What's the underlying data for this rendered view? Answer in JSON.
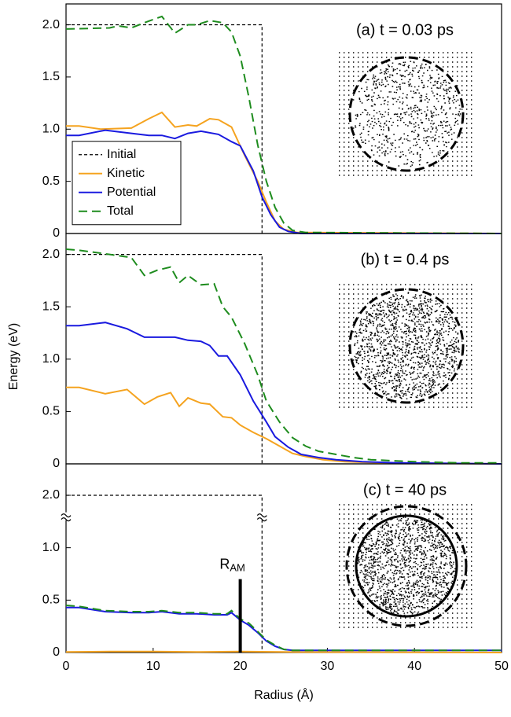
{
  "chart_data": [
    {
      "type": "line",
      "title": "(a)  t = 0.03 ps",
      "xlim": [
        0,
        50
      ],
      "ylim": [
        0,
        2.2
      ],
      "yticks": [
        0,
        0.5,
        {
          "value": 1,
          "label": "1.0"
        },
        1.5,
        {
          "value": 2,
          "label": "2.0"
        }
      ],
      "legend": "center left",
      "series": [
        {
          "name": "Initial",
          "color": "#000000",
          "linestyle": "short-dash",
          "x": [
            0,
            22.5,
            22.5
          ],
          "values": [
            2,
            2,
            0
          ]
        },
        {
          "name": "Kinetic",
          "color": "#f5a31f",
          "linestyle": "solid",
          "x": [
            0,
            1.5,
            4,
            7.5,
            9.5,
            11,
            12.5,
            14,
            15,
            16.5,
            17.5,
            19,
            20.5,
            22,
            23,
            24,
            25,
            26.5,
            50
          ],
          "values": [
            1.03,
            1.03,
            1.0,
            1.01,
            1.1,
            1.16,
            1.02,
            1.04,
            1.03,
            1.1,
            1.09,
            1.02,
            0.75,
            0.5,
            0.3,
            0.12,
            0.04,
            0.01,
            0
          ]
        },
        {
          "name": "Potential",
          "color": "#1a1adf",
          "linestyle": "solid",
          "x": [
            0,
            1.5,
            4.5,
            7.5,
            9.5,
            11,
            12.5,
            14,
            15.5,
            17.5,
            19,
            20,
            21.5,
            22.5,
            23.5,
            24.5,
            25.5,
            27,
            50
          ],
          "values": [
            0.94,
            0.94,
            0.99,
            0.96,
            0.94,
            0.94,
            0.91,
            0.96,
            0.98,
            0.95,
            0.88,
            0.84,
            0.6,
            0.35,
            0.18,
            0.06,
            0.02,
            0,
            0
          ]
        },
        {
          "name": "Total",
          "color": "#1e8c1e",
          "linestyle": "long-dash",
          "x": [
            0,
            5,
            6,
            7.5,
            9,
            11,
            12.5,
            14,
            15,
            16.5,
            18,
            19,
            20,
            21,
            22,
            23,
            24,
            25,
            26,
            27.5,
            50
          ],
          "values": [
            1.96,
            1.97,
            1.99,
            1.97,
            2.02,
            2.08,
            1.92,
            2.0,
            2.0,
            2.04,
            2.02,
            1.93,
            1.7,
            1.3,
            0.85,
            0.5,
            0.25,
            0.1,
            0.03,
            0.01,
            0
          ]
        }
      ]
    },
    {
      "type": "line",
      "title": "(b)  t = 0.4 ps",
      "ylabel": "Energy (eV)",
      "xlim": [
        0,
        50
      ],
      "ylim": [
        0,
        2.2
      ],
      "yticks": [
        0,
        0.5,
        {
          "value": 1,
          "label": "1.0"
        },
        1.5,
        {
          "value": 2,
          "label": "2.0"
        }
      ],
      "series": [
        {
          "color": "#000000",
          "linestyle": "short-dash",
          "x": [
            0,
            22.5,
            22.5
          ],
          "values": [
            2,
            2,
            0
          ]
        },
        {
          "color": "#f5a31f",
          "linestyle": "solid",
          "x": [
            0,
            1.5,
            4.5,
            7,
            9,
            10.5,
            12,
            13,
            14,
            15.5,
            16.5,
            18,
            19,
            20,
            21.5,
            23,
            24.5,
            26,
            27.5,
            29.5,
            32,
            36,
            50
          ],
          "values": [
            0.73,
            0.73,
            0.67,
            0.71,
            0.57,
            0.64,
            0.68,
            0.55,
            0.63,
            0.58,
            0.57,
            0.45,
            0.44,
            0.37,
            0.3,
            0.24,
            0.17,
            0.1,
            0.07,
            0.04,
            0.02,
            0.01,
            0
          ]
        },
        {
          "color": "#1a1adf",
          "linestyle": "solid",
          "x": [
            0,
            1.5,
            4.5,
            7,
            9,
            11,
            12.5,
            14,
            15.5,
            16.5,
            17.5,
            18.5,
            20,
            21.5,
            23,
            24,
            25.5,
            27,
            29,
            31,
            34,
            38,
            50
          ],
          "values": [
            1.32,
            1.32,
            1.35,
            1.29,
            1.21,
            1.21,
            1.21,
            1.18,
            1.17,
            1.13,
            1.03,
            1.03,
            0.85,
            0.6,
            0.4,
            0.26,
            0.16,
            0.09,
            0.06,
            0.04,
            0.02,
            0.01,
            0
          ]
        },
        {
          "color": "#1e8c1e",
          "linestyle": "long-dash",
          "x": [
            0,
            1.5,
            5,
            7.5,
            9,
            10.5,
            12,
            13,
            14,
            15.5,
            17,
            18,
            19,
            20.5,
            22,
            23,
            24.5,
            26,
            27.5,
            29,
            31,
            33,
            35,
            37.5,
            40,
            45,
            50
          ],
          "values": [
            2.05,
            2.04,
            2.0,
            1.97,
            1.8,
            1.85,
            1.88,
            1.73,
            1.8,
            1.71,
            1.72,
            1.5,
            1.4,
            1.15,
            0.85,
            0.6,
            0.4,
            0.25,
            0.17,
            0.12,
            0.09,
            0.06,
            0.04,
            0.03,
            0.02,
            0.01,
            0.01
          ]
        }
      ]
    },
    {
      "type": "line",
      "title": "(c)  t = 40 ps",
      "xlabel": "Radius (Å)",
      "xlim": [
        0,
        50
      ],
      "xticks": [
        0,
        10,
        20,
        30,
        40,
        50
      ],
      "ylim": [
        0,
        2.3
      ],
      "axis_break": [
        1.3,
        1.8
      ],
      "yticks": [
        0,
        0.5,
        {
          "value": 1,
          "label": "1.0"
        },
        {
          "value": 2,
          "label": "2.0"
        }
      ],
      "annotation": {
        "text": "R",
        "subscript": "AM",
        "x": 20,
        "y": 0.7
      },
      "series": [
        {
          "color": "#000000",
          "linestyle": "short-dash",
          "x": [
            0,
            22.5,
            22.5
          ],
          "values": [
            2,
            2,
            0
          ]
        },
        {
          "color": "#f5a31f",
          "linestyle": "solid",
          "x": [
            0,
            5,
            10,
            15,
            20,
            25,
            50
          ],
          "values": [
            0.005,
            0.01,
            0.01,
            0.005,
            0.01,
            0.005,
            0
          ]
        },
        {
          "color": "#1a1adf",
          "linestyle": "solid",
          "x": [
            0,
            1.5,
            4.5,
            7.5,
            9.5,
            11,
            13,
            15,
            17,
            18.5,
            19,
            20,
            21,
            22,
            23,
            24,
            25,
            26,
            50
          ],
          "values": [
            0.43,
            0.43,
            0.39,
            0.38,
            0.38,
            0.39,
            0.37,
            0.37,
            0.36,
            0.36,
            0.38,
            0.31,
            0.26,
            0.19,
            0.11,
            0.06,
            0.03,
            0.02,
            0.02
          ]
        },
        {
          "color": "#1e8c1e",
          "linestyle": "long-dash",
          "x": [
            0,
            1.5,
            4.5,
            7.5,
            9.5,
            11,
            13,
            15,
            17,
            18.5,
            19,
            20,
            21,
            22,
            23,
            24,
            25,
            26,
            50
          ],
          "values": [
            0.45,
            0.44,
            0.4,
            0.39,
            0.39,
            0.4,
            0.38,
            0.38,
            0.37,
            0.37,
            0.4,
            0.32,
            0.28,
            0.2,
            0.12,
            0.07,
            0.03,
            0.02,
            0.02
          ]
        }
      ]
    }
  ]
}
